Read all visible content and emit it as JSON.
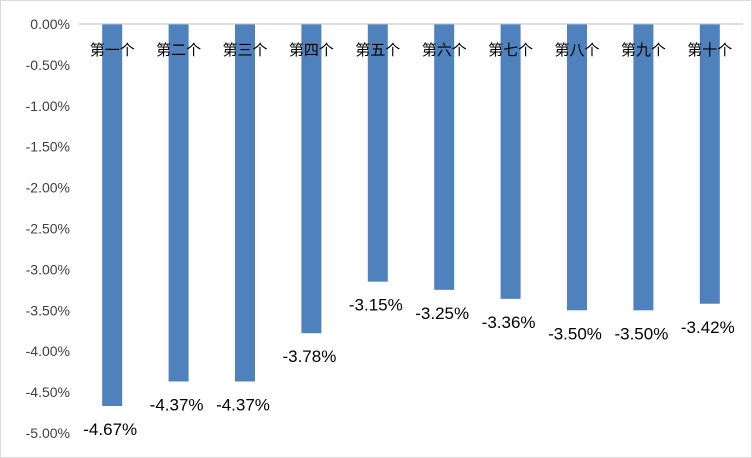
{
  "chart_data": {
    "type": "bar",
    "categories": [
      "第一个",
      "第二个",
      "第三个",
      "第四个",
      "第五个",
      "第六个",
      "第七个",
      "第八个",
      "第九个",
      "第十个"
    ],
    "values": [
      -4.67,
      -4.37,
      -4.37,
      -3.78,
      -3.15,
      -3.25,
      -3.36,
      -3.5,
      -3.5,
      -3.42
    ],
    "data_labels": [
      "-4.67%",
      "-4.37%",
      "-4.37%",
      "-3.78%",
      "-3.15%",
      "-3.25%",
      "-3.36%",
      "-3.50%",
      "-3.50%",
      "-3.42%"
    ],
    "y_ticks": [
      "0.00%",
      "-0.50%",
      "-1.00%",
      "-1.50%",
      "-2.00%",
      "-2.50%",
      "-3.00%",
      "-3.50%",
      "-4.00%",
      "-4.50%",
      "-5.00%"
    ],
    "title": "",
    "xlabel": "",
    "ylabel": "",
    "ylim": [
      -5.0,
      0.0
    ],
    "grid": false,
    "legend": "none",
    "bar_color": "#4f81bd"
  }
}
